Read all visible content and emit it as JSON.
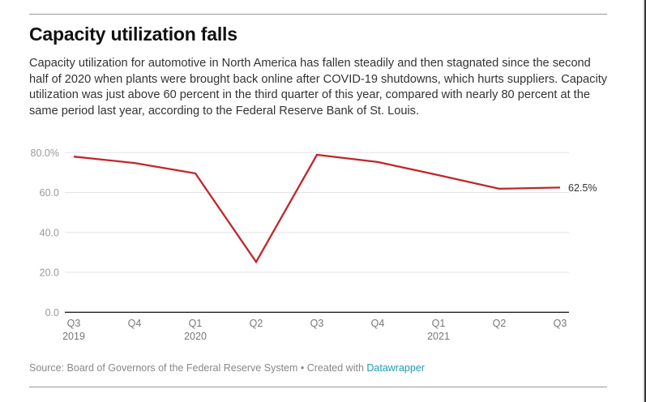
{
  "header": {
    "title": "Capacity utilization falls",
    "description": "Capacity utilization for automotive in North America has fallen steadily and then stagnated since the second half of 2020 when plants were brought back online after COVID-19 shutdowns, which hurts suppliers. Capacity utilization was just above 60 percent in the third quarter of this year, compared with nearly 80 percent at the same period last year, according to the Federal Reserve Bank of St. Louis."
  },
  "footer": {
    "source_text": "Source: Board of Governors of the Federal Reserve System • Created with ",
    "link_text": "Datawrapper"
  },
  "colors": {
    "line": "#c0262b",
    "grid": "#e3e3e3",
    "axis": "#222222",
    "tick_label": "#999999",
    "x_label": "#777777",
    "end_label": "#333333",
    "link": "#1d9bb5"
  },
  "chart_data": {
    "type": "line",
    "title": "Capacity utilization falls",
    "xlabel": "",
    "ylabel": "",
    "x": [
      "Q3 2019",
      "Q4 2019",
      "Q1 2020",
      "Q2 2020",
      "Q3 2020",
      "Q4 2020",
      "Q1 2021",
      "Q2 2021",
      "Q3 2021"
    ],
    "x_tick_labels": [
      {
        "q": "Q3",
        "year": "2019"
      },
      {
        "q": "Q4",
        "year": ""
      },
      {
        "q": "Q1",
        "year": "2020"
      },
      {
        "q": "Q2",
        "year": ""
      },
      {
        "q": "Q3",
        "year": ""
      },
      {
        "q": "Q4",
        "year": ""
      },
      {
        "q": "Q1",
        "year": "2021"
      },
      {
        "q": "Q2",
        "year": ""
      },
      {
        "q": "Q3",
        "year": ""
      }
    ],
    "series": [
      {
        "name": "Capacity utilization (%)",
        "values": [
          78.0,
          74.8,
          69.6,
          25.2,
          78.9,
          75.3,
          68.7,
          61.9,
          62.5
        ]
      }
    ],
    "ylim": [
      0,
      80
    ],
    "y_ticks": [
      0,
      20,
      40,
      60,
      80
    ],
    "y_tick_labels": [
      "0.0",
      "20.0",
      "40.0",
      "60.0",
      "80.0%"
    ],
    "end_label": "62.5%",
    "grid": true,
    "legend": "none"
  }
}
